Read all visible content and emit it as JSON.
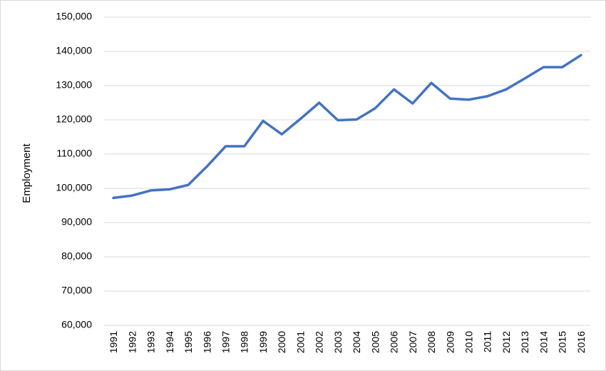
{
  "chart_data": {
    "type": "line",
    "title": "",
    "xlabel": "",
    "ylabel": "Employment",
    "ylim": [
      60000,
      150000
    ],
    "y_ticks": [
      60000,
      70000,
      80000,
      90000,
      100000,
      110000,
      120000,
      130000,
      140000,
      150000
    ],
    "y_tick_labels": [
      "60,000",
      "70,000",
      "80,000",
      "90,000",
      "100,000",
      "110,000",
      "120,000",
      "130,000",
      "140,000",
      "150,000"
    ],
    "grid": "horizontal",
    "legend": "none",
    "line_color": "#4472c4",
    "gridline_color": "#d9d9d9",
    "categories": [
      "1991",
      "1992",
      "1993",
      "1994",
      "1995",
      "1996",
      "1997",
      "1998",
      "1999",
      "2000",
      "2001",
      "2002",
      "2003",
      "2004",
      "2005",
      "2006",
      "2007",
      "2008",
      "2009",
      "2010",
      "2011",
      "2012",
      "2013",
      "2014",
      "2015",
      "2016"
    ],
    "values": [
      97200,
      97900,
      99400,
      99700,
      101000,
      106400,
      112300,
      112300,
      119700,
      115800,
      120300,
      125000,
      119900,
      120100,
      123400,
      128900,
      124800,
      130800,
      126200,
      125900,
      126900,
      128900,
      132100,
      135400,
      135400,
      138900
    ]
  }
}
